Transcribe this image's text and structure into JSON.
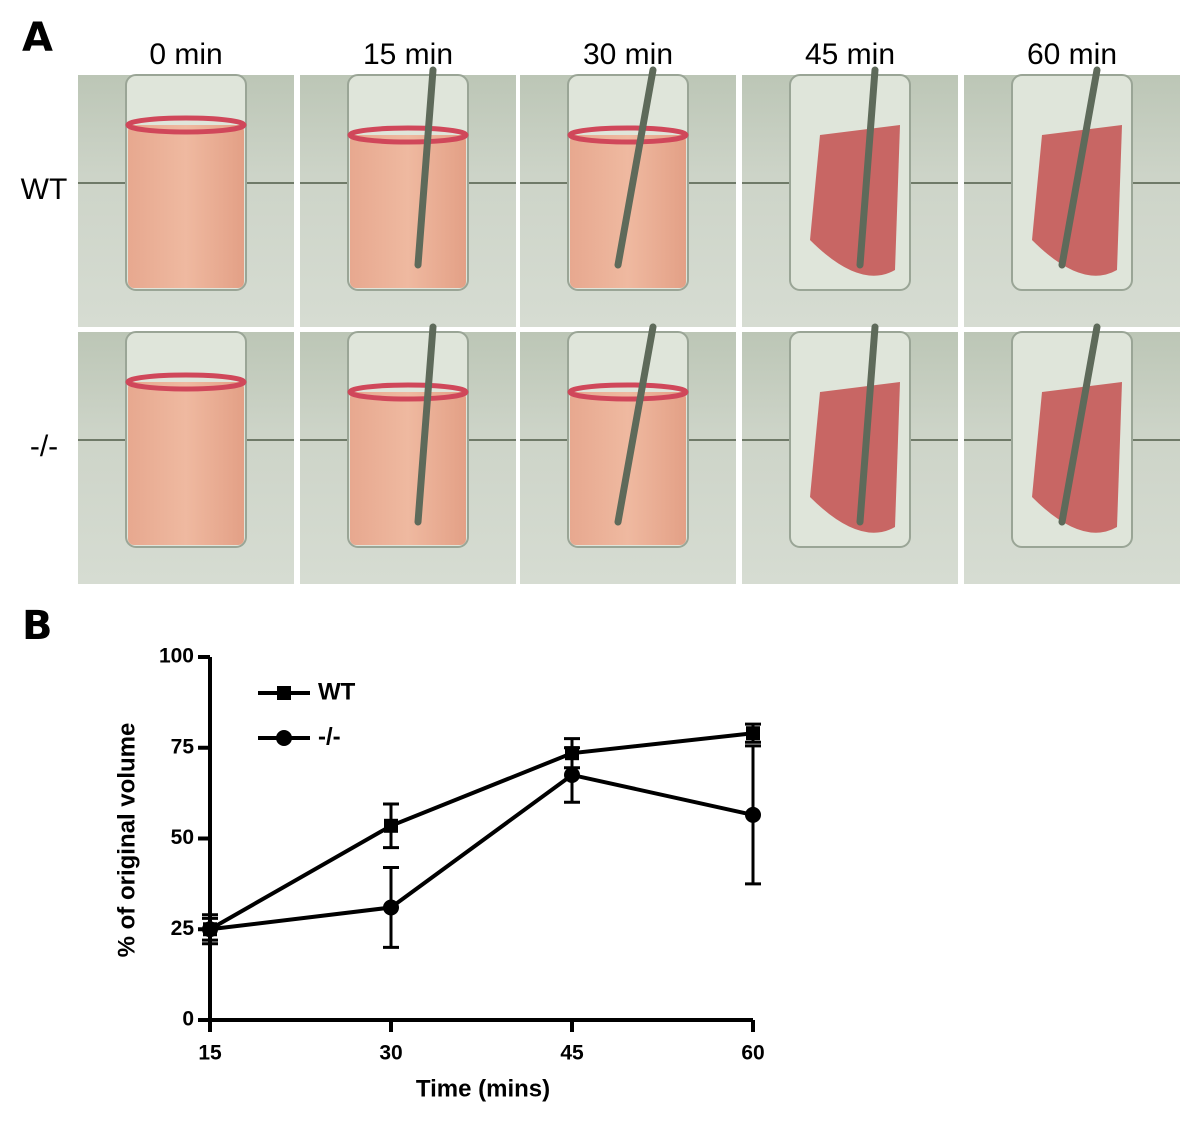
{
  "figure": {
    "panel_a_label": "A",
    "panel_b_label": "B",
    "columns": [
      "0 min",
      "15 min",
      "30 min",
      "45 min",
      "60 min"
    ],
    "rows": [
      "WT",
      "-/-"
    ]
  },
  "chart_data": {
    "type": "line",
    "x_label": "Time (mins)",
    "y_label": "% of original volume",
    "x": [
      15,
      30,
      45,
      60
    ],
    "series": [
      {
        "name": "WT",
        "color": "#000000",
        "marker": "square",
        "values": [
          25,
          53.5,
          73.5,
          79
        ],
        "errors": [
          3,
          6,
          4,
          2.5
        ]
      },
      {
        "name": "-/-",
        "color": "#000000",
        "marker": "circle",
        "values": [
          25,
          31,
          67.5,
          56.5
        ],
        "errors": [
          4,
          11,
          7.5,
          19
        ]
      }
    ],
    "xlim": [
      15,
      60
    ],
    "xticks": [
      15,
      30,
      45,
      60
    ],
    "ylim": [
      0,
      100
    ],
    "yticks": [
      0,
      25,
      50,
      75,
      100
    ],
    "legend": "upper-left"
  }
}
